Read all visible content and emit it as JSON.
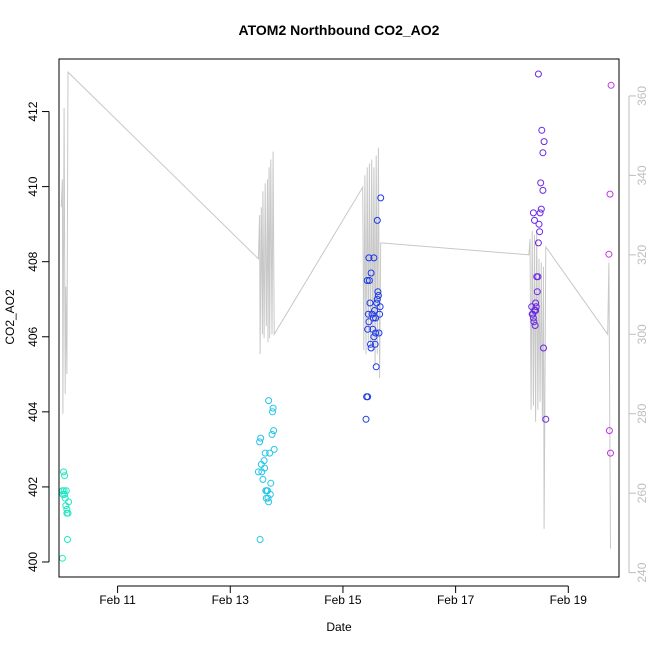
{
  "chart_data": {
    "type": "scatter",
    "title": "ATOM2 Northbound CO2_AO2",
    "xlabel": "Date",
    "ylabel": "CO2_AO2",
    "x_ticks": [
      {
        "day": 11,
        "label": "Feb 11"
      },
      {
        "day": 13,
        "label": "Feb 13"
      },
      {
        "day": 15,
        "label": "Feb 15"
      },
      {
        "day": 17,
        "label": "Feb 17"
      },
      {
        "day": 19,
        "label": "Feb 19"
      }
    ],
    "xlim": [
      9.96,
      19.9
    ],
    "ylim": [
      399.6,
      413.4
    ],
    "y_ticks": [
      400,
      402,
      404,
      406,
      408,
      410,
      412
    ],
    "y2_ticks": [
      240,
      260,
      280,
      300,
      320,
      340,
      360
    ],
    "y2lim": [
      238.9,
      369.3
    ],
    "grid": false,
    "point_series": [
      {
        "color": "#1ee8c2",
        "points": [
          [
            10.02,
            400.1
          ],
          [
            10.05,
            401.9
          ],
          [
            10.04,
            402.4
          ],
          [
            10.06,
            402.3
          ],
          [
            10.07,
            401.7
          ],
          [
            10.03,
            401.8
          ],
          [
            10.09,
            401.9
          ],
          [
            10.1,
            401.4
          ],
          [
            10.08,
            401.5
          ],
          [
            10.12,
            401.3
          ],
          [
            10.13,
            401.6
          ],
          [
            10.1,
            401.3
          ],
          [
            10.11,
            400.6
          ],
          [
            10.02,
            401.9
          ],
          [
            10.06,
            401.8
          ]
        ]
      },
      {
        "color": "#27c6e8",
        "points": [
          [
            13.53,
            400.6
          ],
          [
            13.52,
            403.2
          ],
          [
            13.54,
            403.3
          ],
          [
            13.55,
            402.6
          ],
          [
            13.5,
            402.4
          ],
          [
            13.56,
            402.4
          ],
          [
            13.58,
            402.2
          ],
          [
            13.6,
            402.7
          ],
          [
            13.62,
            402.9
          ],
          [
            13.63,
            401.9
          ],
          [
            13.64,
            401.7
          ],
          [
            13.66,
            401.9
          ],
          [
            13.67,
            401.7
          ],
          [
            13.68,
            401.6
          ],
          [
            13.7,
            402.9
          ],
          [
            13.71,
            401.8
          ],
          [
            13.72,
            402.1
          ],
          [
            13.74,
            403.4
          ],
          [
            13.75,
            404.0
          ],
          [
            13.76,
            404.1
          ],
          [
            13.77,
            403.5
          ],
          [
            13.68,
            404.3
          ],
          [
            13.78,
            403.0
          ],
          [
            13.61,
            402.5
          ],
          [
            13.65,
            401.9
          ]
        ]
      },
      {
        "color": "#1c3aea",
        "points": [
          [
            15.41,
            403.8
          ],
          [
            15.42,
            404.4
          ],
          [
            15.44,
            404.4
          ],
          [
            15.43,
            407.5
          ],
          [
            15.47,
            407.5
          ],
          [
            15.46,
            408.1
          ],
          [
            15.45,
            406.6
          ],
          [
            15.48,
            406.9
          ],
          [
            15.5,
            407.7
          ],
          [
            15.44,
            406.2
          ],
          [
            15.46,
            406.4
          ],
          [
            15.52,
            406.6
          ],
          [
            15.53,
            406.2
          ],
          [
            15.55,
            406.0
          ],
          [
            15.57,
            405.8
          ],
          [
            15.58,
            406.1
          ],
          [
            15.49,
            405.8
          ],
          [
            15.5,
            405.7
          ],
          [
            15.56,
            406.7
          ],
          [
            15.6,
            406.9
          ],
          [
            15.61,
            407.0
          ],
          [
            15.63,
            407.1
          ],
          [
            15.62,
            407.2
          ],
          [
            15.65,
            406.6
          ],
          [
            15.64,
            406.1
          ],
          [
            15.55,
            408.1
          ],
          [
            15.58,
            406.5
          ],
          [
            15.67,
            409.7
          ],
          [
            15.61,
            409.1
          ],
          [
            15.59,
            405.2
          ],
          [
            15.54,
            406.5
          ],
          [
            15.66,
            406.8
          ]
        ]
      },
      {
        "color": "#6a28e6",
        "points": [
          [
            18.35,
            406.8
          ],
          [
            18.37,
            406.6
          ],
          [
            18.38,
            406.5
          ],
          [
            18.4,
            406.7
          ],
          [
            18.42,
            406.9
          ],
          [
            18.39,
            406.4
          ],
          [
            18.41,
            406.3
          ],
          [
            18.43,
            406.8
          ],
          [
            18.44,
            407.6
          ],
          [
            18.46,
            407.6
          ],
          [
            18.45,
            407.2
          ],
          [
            18.47,
            408.5
          ],
          [
            18.49,
            408.8
          ],
          [
            18.5,
            409.3
          ],
          [
            18.52,
            409.4
          ],
          [
            18.38,
            409.3
          ],
          [
            18.4,
            409.1
          ],
          [
            18.48,
            409.0
          ],
          [
            18.51,
            410.1
          ],
          [
            18.55,
            409.9
          ],
          [
            18.53,
            411.5
          ],
          [
            18.57,
            411.2
          ],
          [
            18.55,
            410.9
          ],
          [
            18.47,
            413.0
          ],
          [
            18.56,
            405.7
          ],
          [
            18.6,
            403.8
          ],
          [
            18.36,
            406.6
          ],
          [
            18.42,
            406.7
          ]
        ]
      },
      {
        "color": "#c236e3",
        "points": [
          [
            19.72,
            408.2
          ],
          [
            19.74,
            409.8
          ],
          [
            19.76,
            412.7
          ],
          [
            19.73,
            403.5
          ],
          [
            19.75,
            402.9
          ]
        ]
      }
    ],
    "line_series": {
      "axis": "right",
      "color": "#c8c8c8",
      "points": [
        [
          10.0,
          332
        ],
        [
          10.02,
          339
        ],
        [
          10.03,
          280
        ],
        [
          10.05,
          357
        ],
        [
          10.07,
          285
        ],
        [
          10.08,
          312
        ],
        [
          10.1,
          290
        ],
        [
          10.12,
          366
        ],
        [
          13.5,
          319
        ],
        [
          13.52,
          330
        ],
        [
          13.53,
          295
        ],
        [
          13.55,
          332
        ],
        [
          13.57,
          300
        ],
        [
          13.58,
          336
        ],
        [
          13.6,
          299
        ],
        [
          13.62,
          338
        ],
        [
          13.64,
          302
        ],
        [
          13.66,
          339
        ],
        [
          13.67,
          298
        ],
        [
          13.69,
          342
        ],
        [
          13.7,
          299
        ],
        [
          13.72,
          344
        ],
        [
          13.74,
          300
        ],
        [
          13.76,
          346
        ],
        [
          13.78,
          300
        ],
        [
          15.35,
          337
        ],
        [
          15.37,
          296
        ],
        [
          15.39,
          340
        ],
        [
          15.41,
          295
        ],
        [
          15.43,
          342
        ],
        [
          15.45,
          298
        ],
        [
          15.47,
          343
        ],
        [
          15.49,
          297
        ],
        [
          15.51,
          344
        ],
        [
          15.53,
          296
        ],
        [
          15.55,
          342
        ],
        [
          15.57,
          292
        ],
        [
          15.59,
          345
        ],
        [
          15.61,
          295
        ],
        [
          15.63,
          347
        ],
        [
          15.65,
          289
        ],
        [
          15.67,
          323
        ],
        [
          18.3,
          320
        ],
        [
          18.32,
          324
        ],
        [
          18.34,
          281
        ],
        [
          18.36,
          326
        ],
        [
          18.38,
          282
        ],
        [
          18.4,
          325
        ],
        [
          18.42,
          278
        ],
        [
          18.44,
          326
        ],
        [
          18.46,
          281
        ],
        [
          18.48,
          319
        ],
        [
          18.5,
          283
        ],
        [
          18.52,
          318
        ],
        [
          18.54,
          278
        ],
        [
          18.56,
          317
        ],
        [
          18.57,
          251
        ],
        [
          18.6,
          322
        ],
        [
          19.7,
          300
        ],
        [
          19.72,
          318
        ],
        [
          19.75,
          246
        ]
      ]
    }
  }
}
